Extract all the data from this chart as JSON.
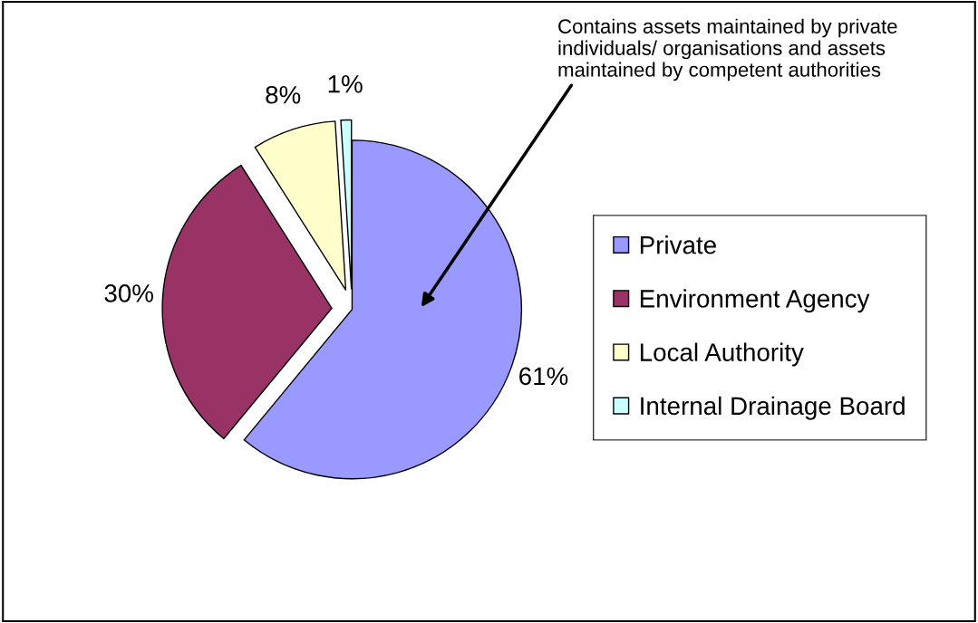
{
  "chart_data": {
    "type": "pie",
    "categories": [
      "Private",
      "Environment Agency",
      "Local Authority",
      "Internal Drainage Board"
    ],
    "values": [
      61,
      30,
      8,
      1
    ],
    "colors": [
      "#9999ff",
      "#993366",
      "#ffffcc",
      "#ccffff"
    ],
    "value_labels": [
      "61%",
      "30%",
      "8%",
      "1%"
    ],
    "legend": "right",
    "annotations": [
      "Contains assets maintained by private individuals/ organisations and assets maintained by competent authorities"
    ]
  }
}
